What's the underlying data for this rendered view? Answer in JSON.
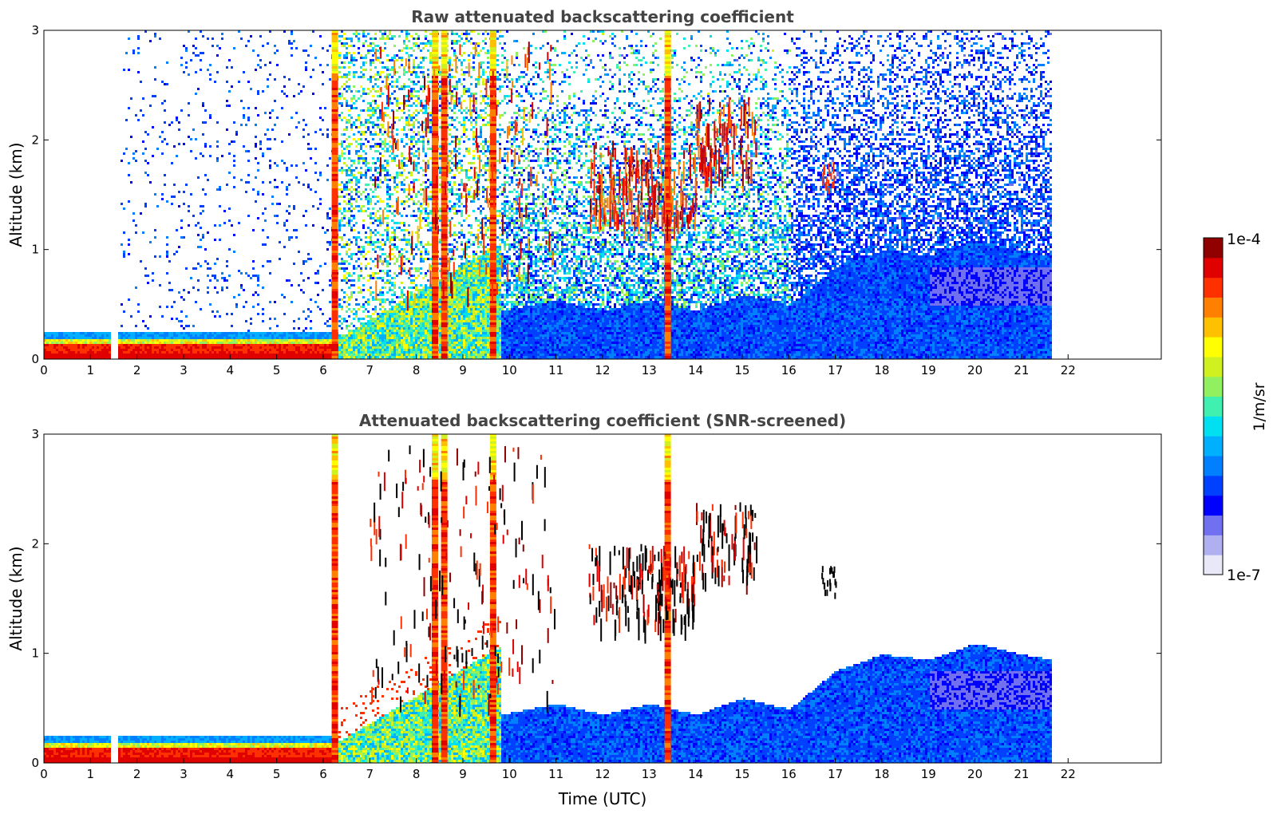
{
  "chart_data": [
    {
      "type": "heatmap",
      "title": "Raw attenuated backscattering coefficient",
      "ylabel": "Altitude (km)",
      "xlabel": "",
      "xlim": [
        0,
        24
      ],
      "ylim": [
        0,
        3
      ],
      "x_ticks": [
        "0",
        "1",
        "2",
        "3",
        "4",
        "5",
        "6",
        "7",
        "8",
        "9",
        "10",
        "11",
        "12",
        "13",
        "14",
        "15",
        "16",
        "17",
        "18",
        "19",
        "20",
        "21",
        "22"
      ],
      "y_ticks": [
        "0",
        "1",
        "2",
        "3"
      ],
      "data_end_time": 21.65,
      "gap_time": 1.5,
      "features": [
        {
          "name": "surface layer",
          "t0": 0,
          "t1": 6.3,
          "z0": 0,
          "z1": 0.25
        },
        {
          "name": "dense cloud columns",
          "times": [
            6.25,
            8.4,
            8.6,
            9.65,
            13.4
          ]
        },
        {
          "name": "broken cloud layer",
          "t0": 11.7,
          "t1": 15.3,
          "z0": 1.3,
          "z1": 2.0
        }
      ]
    },
    {
      "type": "heatmap",
      "title": "Attenuated backscattering coefficient (SNR-screened)",
      "ylabel": "Altitude (km)",
      "xlabel": "Time (UTC)",
      "xlim": [
        0,
        24
      ],
      "ylim": [
        0,
        3
      ],
      "x_ticks": [
        "0",
        "1",
        "2",
        "3",
        "4",
        "5",
        "6",
        "7",
        "8",
        "9",
        "10",
        "11",
        "12",
        "13",
        "14",
        "15",
        "16",
        "17",
        "18",
        "19",
        "20",
        "21",
        "22"
      ],
      "y_ticks": [
        "0",
        "1",
        "2",
        "3"
      ],
      "data_end_time": 21.65,
      "gap_time": 1.5,
      "boundary_layer_top_km": [
        [
          9.8,
          0.45
        ],
        [
          11,
          0.55
        ],
        [
          12,
          0.45
        ],
        [
          13,
          0.55
        ],
        [
          14,
          0.45
        ],
        [
          15,
          0.6
        ],
        [
          16,
          0.5
        ],
        [
          17,
          0.85
        ],
        [
          18,
          1.0
        ],
        [
          19,
          0.95
        ],
        [
          20,
          1.1
        ],
        [
          21,
          1.0
        ],
        [
          21.65,
          0.95
        ]
      ]
    }
  ],
  "colorbar": {
    "label": "1/m/sr",
    "max_label": "1e-4",
    "min_label": "1e-7",
    "colors": [
      "#e8e8f8",
      "#b0b0f0",
      "#7070f0",
      "#0000ff",
      "#0040ff",
      "#0080ff",
      "#00b0ff",
      "#00e0f0",
      "#40f0b0",
      "#90f060",
      "#d0f020",
      "#ffff00",
      "#ffc000",
      "#ff8000",
      "#ff3000",
      "#e00000",
      "#900000"
    ]
  }
}
